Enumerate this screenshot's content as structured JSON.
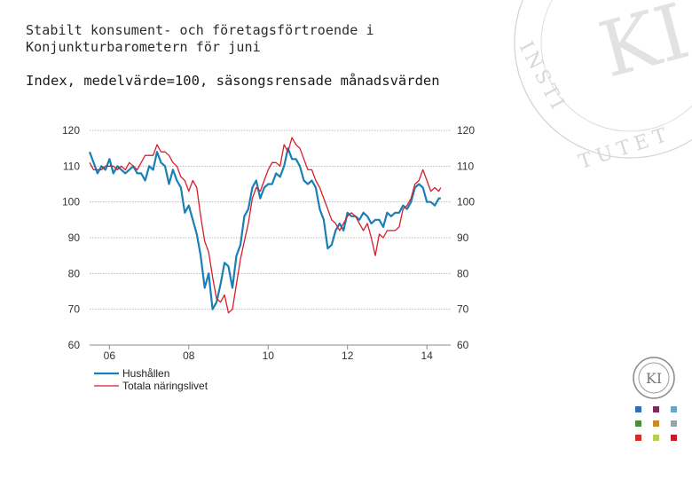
{
  "header": {
    "title_line1": "Stabilt konsument- och företagsförtroende i",
    "title_line2": "Konjunkturbarometern för juni",
    "subtitle": "Index, medelvärde=100, säsongsrensade månadsvärden"
  },
  "branding": {
    "logo_text": "KI",
    "seal_text": "KONJUNKTURINSTITUTET"
  },
  "colors": {
    "households": "#1a7fb5",
    "business": "#d81e2a",
    "grid": "#b9b9b9",
    "squares": [
      "#2f6fb4",
      "#7b2a5e",
      "#6ba3c9",
      "#4b8d3b",
      "#c9892a",
      "#9aa4a8",
      "#d42b2b",
      "#b5cf52",
      "#c41e2e"
    ]
  },
  "chart_data": {
    "type": "line",
    "title": "",
    "xlabel": "",
    "ylabel": "",
    "ylim": [
      60,
      120
    ],
    "yticks": [
      60,
      70,
      80,
      90,
      100,
      110,
      120
    ],
    "xlim": [
      2005.5,
      2014.6
    ],
    "xticks": [
      {
        "label": "06",
        "value": 2006.0
      },
      {
        "label": "08",
        "value": 2008.0
      },
      {
        "label": "10",
        "value": 2010.0
      },
      {
        "label": "12",
        "value": 2012.0
      },
      {
        "label": "14",
        "value": 2014.0
      }
    ],
    "legend_position": "bottom-left",
    "series": [
      {
        "name": "Hushållen",
        "color": "#1a7fb5",
        "points": [
          [
            2005.5,
            114
          ],
          [
            2005.6,
            111
          ],
          [
            2005.7,
            108
          ],
          [
            2005.8,
            110
          ],
          [
            2005.9,
            109
          ],
          [
            2006.0,
            112
          ],
          [
            2006.1,
            108
          ],
          [
            2006.2,
            110
          ],
          [
            2006.3,
            109
          ],
          [
            2006.4,
            108
          ],
          [
            2006.5,
            109
          ],
          [
            2006.6,
            110
          ],
          [
            2006.7,
            108
          ],
          [
            2006.8,
            108
          ],
          [
            2006.9,
            106
          ],
          [
            2007.0,
            110
          ],
          [
            2007.1,
            109
          ],
          [
            2007.2,
            114
          ],
          [
            2007.3,
            111
          ],
          [
            2007.4,
            110
          ],
          [
            2007.5,
            105
          ],
          [
            2007.6,
            109
          ],
          [
            2007.7,
            106
          ],
          [
            2007.8,
            104
          ],
          [
            2007.9,
            97
          ],
          [
            2008.0,
            99
          ],
          [
            2008.1,
            95
          ],
          [
            2008.2,
            91
          ],
          [
            2008.3,
            85
          ],
          [
            2008.4,
            76
          ],
          [
            2008.5,
            80
          ],
          [
            2008.6,
            70
          ],
          [
            2008.7,
            72
          ],
          [
            2008.8,
            77
          ],
          [
            2008.9,
            83
          ],
          [
            2009.0,
            82
          ],
          [
            2009.1,
            76
          ],
          [
            2009.2,
            85
          ],
          [
            2009.3,
            88
          ],
          [
            2009.4,
            96
          ],
          [
            2009.5,
            98
          ],
          [
            2009.6,
            104
          ],
          [
            2009.7,
            106
          ],
          [
            2009.8,
            101
          ],
          [
            2009.9,
            104
          ],
          [
            2010.0,
            105
          ],
          [
            2010.1,
            105
          ],
          [
            2010.2,
            108
          ],
          [
            2010.3,
            107
          ],
          [
            2010.4,
            110
          ],
          [
            2010.5,
            115
          ],
          [
            2010.6,
            112
          ],
          [
            2010.7,
            112
          ],
          [
            2010.8,
            110
          ],
          [
            2010.9,
            106
          ],
          [
            2011.0,
            105
          ],
          [
            2011.1,
            106
          ],
          [
            2011.2,
            104
          ],
          [
            2011.3,
            98
          ],
          [
            2011.4,
            95
          ],
          [
            2011.5,
            87
          ],
          [
            2011.6,
            88
          ],
          [
            2011.7,
            92
          ],
          [
            2011.8,
            94
          ],
          [
            2011.9,
            92
          ],
          [
            2012.0,
            97
          ],
          [
            2012.1,
            96
          ],
          [
            2012.2,
            96
          ],
          [
            2012.3,
            95
          ],
          [
            2012.4,
            97
          ],
          [
            2012.5,
            96
          ],
          [
            2012.6,
            94
          ],
          [
            2012.7,
            95
          ],
          [
            2012.8,
            95
          ],
          [
            2012.9,
            93
          ],
          [
            2013.0,
            97
          ],
          [
            2013.1,
            96
          ],
          [
            2013.2,
            97
          ],
          [
            2013.3,
            97
          ],
          [
            2013.4,
            99
          ],
          [
            2013.5,
            98
          ],
          [
            2013.6,
            100
          ],
          [
            2013.7,
            104
          ],
          [
            2013.8,
            105
          ],
          [
            2013.9,
            104
          ],
          [
            2014.0,
            100
          ],
          [
            2014.1,
            100
          ],
          [
            2014.2,
            99
          ],
          [
            2014.3,
            101
          ],
          [
            2014.35,
            101
          ]
        ]
      },
      {
        "name": "Totala näringslivet",
        "color": "#d81e2a",
        "points": [
          [
            2005.5,
            111
          ],
          [
            2005.6,
            109
          ],
          [
            2005.7,
            109
          ],
          [
            2005.8,
            109
          ],
          [
            2005.9,
            110
          ],
          [
            2006.0,
            110
          ],
          [
            2006.1,
            110
          ],
          [
            2006.2,
            109
          ],
          [
            2006.3,
            110
          ],
          [
            2006.4,
            109
          ],
          [
            2006.5,
            111
          ],
          [
            2006.6,
            110
          ],
          [
            2006.7,
            109
          ],
          [
            2006.8,
            111
          ],
          [
            2006.9,
            113
          ],
          [
            2007.0,
            113
          ],
          [
            2007.1,
            113
          ],
          [
            2007.2,
            116
          ],
          [
            2007.3,
            114
          ],
          [
            2007.4,
            114
          ],
          [
            2007.5,
            113
          ],
          [
            2007.6,
            111
          ],
          [
            2007.7,
            110
          ],
          [
            2007.8,
            107
          ],
          [
            2007.9,
            106
          ],
          [
            2008.0,
            103
          ],
          [
            2008.1,
            106
          ],
          [
            2008.2,
            104
          ],
          [
            2008.3,
            96
          ],
          [
            2008.4,
            89
          ],
          [
            2008.5,
            86
          ],
          [
            2008.6,
            79
          ],
          [
            2008.7,
            73
          ],
          [
            2008.8,
            72
          ],
          [
            2008.9,
            74
          ],
          [
            2009.0,
            69
          ],
          [
            2009.1,
            70
          ],
          [
            2009.2,
            77
          ],
          [
            2009.3,
            84
          ],
          [
            2009.4,
            89
          ],
          [
            2009.5,
            94
          ],
          [
            2009.6,
            101
          ],
          [
            2009.7,
            104
          ],
          [
            2009.8,
            103
          ],
          [
            2009.9,
            106
          ],
          [
            2010.0,
            109
          ],
          [
            2010.1,
            111
          ],
          [
            2010.2,
            111
          ],
          [
            2010.3,
            110
          ],
          [
            2010.4,
            116
          ],
          [
            2010.5,
            114
          ],
          [
            2010.6,
            118
          ],
          [
            2010.7,
            116
          ],
          [
            2010.8,
            115
          ],
          [
            2010.9,
            112
          ],
          [
            2011.0,
            109
          ],
          [
            2011.1,
            109
          ],
          [
            2011.2,
            106
          ],
          [
            2011.3,
            104
          ],
          [
            2011.4,
            101
          ],
          [
            2011.5,
            98
          ],
          [
            2011.6,
            95
          ],
          [
            2011.7,
            94
          ],
          [
            2011.8,
            92
          ],
          [
            2011.9,
            94
          ],
          [
            2012.0,
            96
          ],
          [
            2012.1,
            97
          ],
          [
            2012.2,
            96
          ],
          [
            2012.3,
            94
          ],
          [
            2012.4,
            92
          ],
          [
            2012.5,
            94
          ],
          [
            2012.6,
            90
          ],
          [
            2012.7,
            85
          ],
          [
            2012.8,
            91
          ],
          [
            2012.9,
            90
          ],
          [
            2013.0,
            92
          ],
          [
            2013.1,
            92
          ],
          [
            2013.2,
            92
          ],
          [
            2013.3,
            93
          ],
          [
            2013.4,
            98
          ],
          [
            2013.5,
            99
          ],
          [
            2013.6,
            101
          ],
          [
            2013.7,
            105
          ],
          [
            2013.8,
            106
          ],
          [
            2013.9,
            109
          ],
          [
            2014.0,
            106
          ],
          [
            2014.1,
            103
          ],
          [
            2014.2,
            104
          ],
          [
            2014.3,
            103
          ],
          [
            2014.35,
            104
          ]
        ]
      }
    ]
  }
}
